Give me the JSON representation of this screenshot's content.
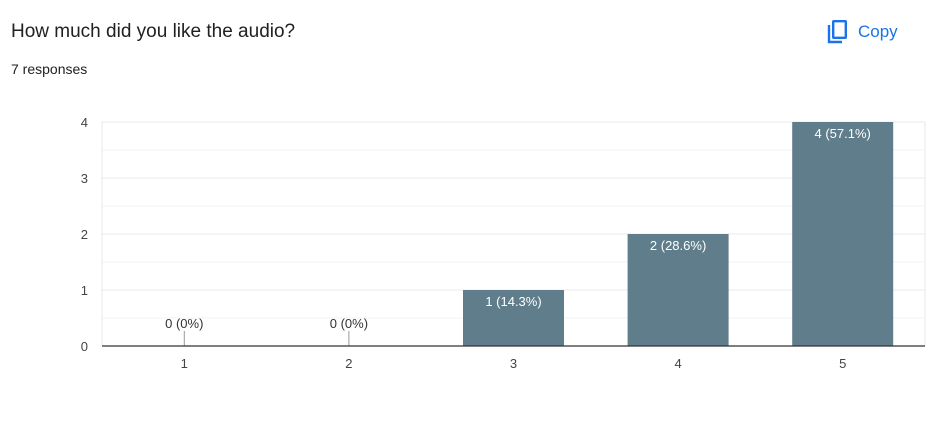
{
  "header": {
    "title": "How much did you like the audio?",
    "responses": "7 responses",
    "copy_label": "Copy",
    "copy_icon": "copy-icon"
  },
  "colors": {
    "bar": "#607d8b",
    "accent": "#1a73e8",
    "gridline": "#e8e8e8",
    "axis": "#333333"
  },
  "chart_data": {
    "type": "bar",
    "categories": [
      "1",
      "2",
      "3",
      "4",
      "5"
    ],
    "values": [
      0,
      0,
      1,
      2,
      4
    ],
    "data_labels": [
      "0 (0%)",
      "0 (0%)",
      "1 (14.3%)",
      "2 (28.6%)",
      "4 (57.1%)"
    ],
    "yticks": [
      0,
      1,
      2,
      3,
      4
    ],
    "ylim": [
      0,
      4
    ],
    "title": "",
    "xlabel": "",
    "ylabel": "",
    "grid": true,
    "legend": "none"
  }
}
